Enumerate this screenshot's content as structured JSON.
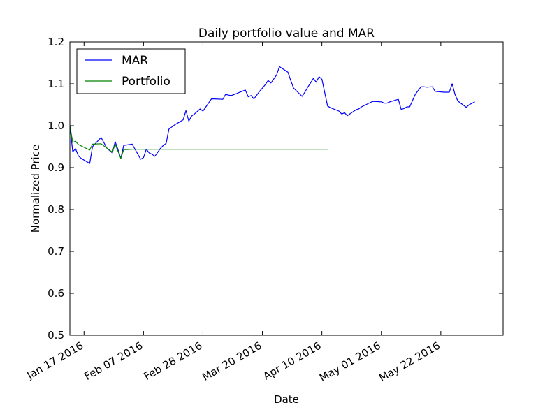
{
  "chart_data": {
    "type": "line",
    "title": "Daily portfolio value and MAR",
    "xlabel": "Date",
    "ylabel": "Normalized Price",
    "ylim": [
      0.5,
      1.2
    ],
    "xlim_days": [
      0,
      153
    ],
    "yticks": [
      0.5,
      0.6,
      0.7,
      0.8,
      0.9,
      1.0,
      1.1,
      1.2
    ],
    "ytick_labels": [
      "0.5",
      "0.6",
      "0.7",
      "0.8",
      "0.9",
      "1.0",
      "1.1",
      "1.2"
    ],
    "xticks_days": [
      5,
      26,
      47,
      68,
      89,
      110,
      131
    ],
    "xtick_labels": [
      "Jan 17 2016",
      "Feb 07 2016",
      "Feb 28 2016",
      "Mar 20 2016",
      "Apr 10 2016",
      "May 01 2016",
      "May 22 2016"
    ],
    "legend_position": "top-left",
    "series": [
      {
        "name": "MAR",
        "color": "#0000ff",
        "x": [
          0,
          1,
          2,
          3,
          4,
          7,
          8,
          11,
          12,
          13,
          15,
          16,
          17,
          18,
          19,
          20,
          22,
          25,
          26,
          27,
          28,
          29,
          30,
          32,
          33,
          34,
          35,
          36,
          37,
          40,
          41,
          42,
          43,
          44,
          46,
          47,
          50,
          51,
          54,
          55,
          56,
          57,
          59,
          60,
          62,
          63,
          64,
          65,
          67,
          68,
          69,
          70,
          71,
          73,
          74,
          77,
          78,
          79,
          82,
          83,
          84,
          85,
          86,
          87,
          88,
          89,
          91,
          92,
          95,
          96,
          97,
          98,
          101,
          102,
          103,
          106,
          107,
          110,
          111,
          112,
          113,
          116,
          117,
          118,
          119,
          120,
          122,
          124,
          125,
          126,
          128,
          129,
          132,
          134,
          135,
          136,
          137,
          140,
          141,
          143
        ],
        "values": [
          1.0,
          0.938,
          0.945,
          0.928,
          0.922,
          0.91,
          0.95,
          0.972,
          0.96,
          0.947,
          0.935,
          0.962,
          0.943,
          0.922,
          0.953,
          0.954,
          0.956,
          0.92,
          0.924,
          0.944,
          0.935,
          0.932,
          0.927,
          0.946,
          0.953,
          0.958,
          0.992,
          0.997,
          1.002,
          1.014,
          1.036,
          1.011,
          1.023,
          1.028,
          1.04,
          1.035,
          1.064,
          1.064,
          1.063,
          1.075,
          1.073,
          1.072,
          1.077,
          1.08,
          1.085,
          1.069,
          1.072,
          1.064,
          1.082,
          1.09,
          1.098,
          1.108,
          1.102,
          1.121,
          1.141,
          1.128,
          1.108,
          1.09,
          1.07,
          1.08,
          1.092,
          1.102,
          1.113,
          1.104,
          1.117,
          1.111,
          1.047,
          1.043,
          1.035,
          1.028,
          1.031,
          1.024,
          1.038,
          1.04,
          1.045,
          1.055,
          1.058,
          1.057,
          1.054,
          1.054,
          1.057,
          1.063,
          1.039,
          1.041,
          1.045,
          1.045,
          1.075,
          1.093,
          1.093,
          1.092,
          1.093,
          1.082,
          1.08,
          1.08,
          1.1,
          1.075,
          1.059,
          1.044,
          1.05,
          1.057
        ]
      },
      {
        "name": "Portfolio",
        "color": "#008000",
        "x": [
          0,
          1,
          2,
          3,
          7,
          8,
          11,
          12,
          15,
          16,
          18,
          19,
          20,
          22,
          25,
          26,
          27,
          28,
          29,
          30,
          32,
          33,
          34,
          35,
          36,
          37,
          40,
          41,
          42,
          43,
          44,
          46,
          47,
          48,
          49,
          50,
          51,
          54,
          55,
          56,
          57,
          59,
          60,
          62,
          63,
          64,
          65,
          67,
          68,
          69,
          70,
          72,
          73,
          74,
          75,
          76,
          78,
          81,
          82,
          84,
          85,
          87,
          88,
          89,
          91
        ],
        "values": [
          1.0,
          0.96,
          0.963,
          0.955,
          0.942,
          0.956,
          0.957,
          0.952,
          0.937,
          0.956,
          0.922,
          0.943,
          0.943,
          0.944,
          0.944,
          0.944,
          0.944,
          0.944,
          0.944,
          0.944,
          0.944,
          0.944,
          0.944,
          0.944,
          0.944,
          0.944,
          0.944,
          0.944,
          0.944,
          0.944,
          0.944,
          0.944,
          0.944,
          0.944,
          0.944,
          0.944,
          0.944,
          0.944,
          0.944,
          0.944,
          0.944,
          0.944,
          0.944,
          0.944,
          0.944,
          0.944,
          0.944,
          0.944,
          0.944,
          0.944,
          0.944,
          0.944,
          0.944,
          0.944,
          0.944,
          0.944,
          0.944,
          0.944,
          0.944,
          0.944,
          0.944,
          0.944,
          0.944,
          0.944,
          0.944
        ]
      }
    ]
  }
}
